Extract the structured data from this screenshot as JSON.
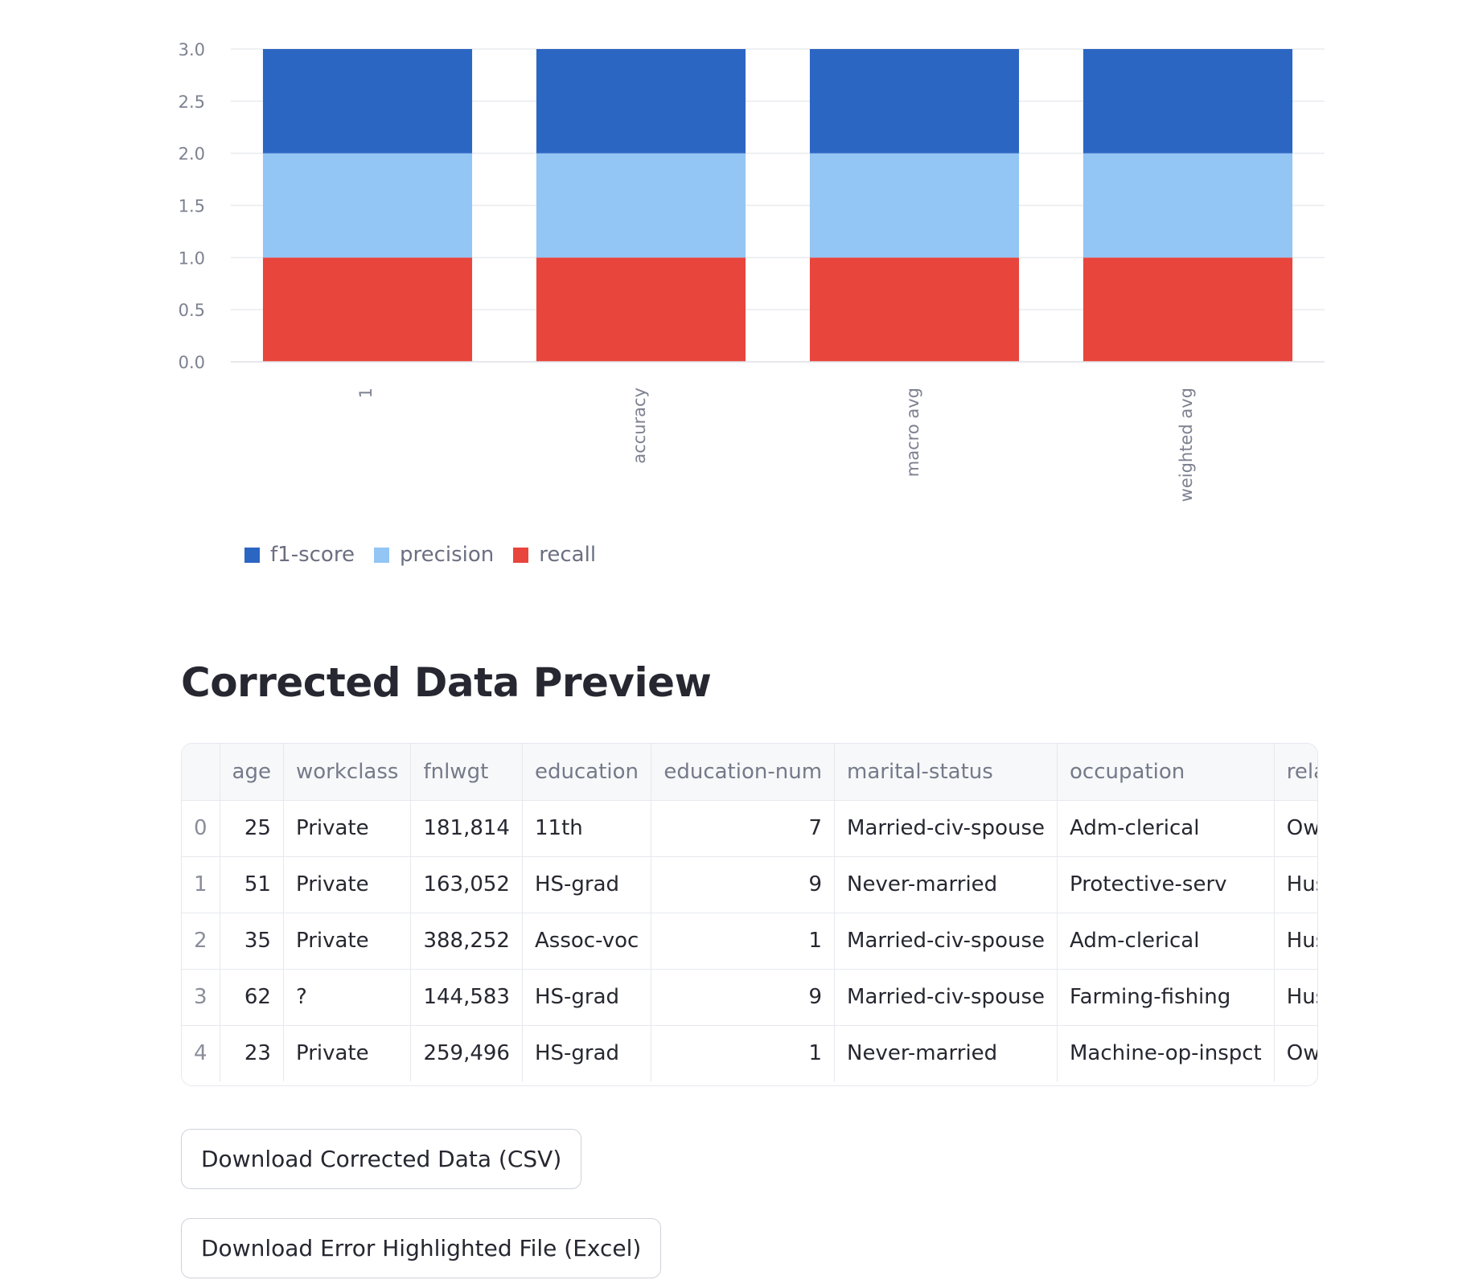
{
  "chart_data": {
    "type": "bar",
    "stacked": true,
    "categories": [
      "1",
      "accuracy",
      "macro avg",
      "weighted avg"
    ],
    "series": [
      {
        "name": "recall",
        "values": [
          1,
          1,
          1,
          1
        ],
        "color": "#e8453c"
      },
      {
        "name": "precision",
        "values": [
          1,
          1,
          1,
          1
        ],
        "color": "#93c5f5"
      },
      {
        "name": "f1-score",
        "values": [
          1,
          1,
          1,
          1
        ],
        "color": "#2c66c3"
      }
    ],
    "legend_order": [
      "f1-score",
      "precision",
      "recall"
    ],
    "yticks": [
      "0.0",
      "0.5",
      "1.0",
      "1.5",
      "2.0",
      "2.5",
      "3.0"
    ],
    "ylim": [
      0,
      3
    ],
    "grid": true,
    "legend_position": "bottom-left"
  },
  "section": {
    "title": "Corrected Data Preview"
  },
  "table": {
    "columns": [
      "",
      "age",
      "workclass",
      "fnlwgt",
      "education",
      "education-num",
      "marital-status",
      "occupation",
      "rela"
    ],
    "rows": [
      [
        "0",
        "25",
        "Private",
        "181,814",
        "11th",
        "7",
        "Married-civ-spouse",
        "Adm-clerical",
        "Owr"
      ],
      [
        "1",
        "51",
        "Private",
        "163,052",
        "HS-grad",
        "9",
        "Never-married",
        "Protective-serv",
        "Hus"
      ],
      [
        "2",
        "35",
        "Private",
        "388,252",
        "Assoc-voc",
        "1",
        "Married-civ-spouse",
        "Adm-clerical",
        "Hus"
      ],
      [
        "3",
        "62",
        "?",
        "144,583",
        "HS-grad",
        "9",
        "Married-civ-spouse",
        "Farming-fishing",
        "Hus"
      ],
      [
        "4",
        "23",
        "Private",
        "259,496",
        "HS-grad",
        "1",
        "Never-married",
        "Machine-op-inspct",
        "Owr"
      ]
    ]
  },
  "buttons": {
    "download_csv": "Download Corrected Data (CSV)",
    "download_excel": "Download Error Highlighted File (Excel)"
  }
}
